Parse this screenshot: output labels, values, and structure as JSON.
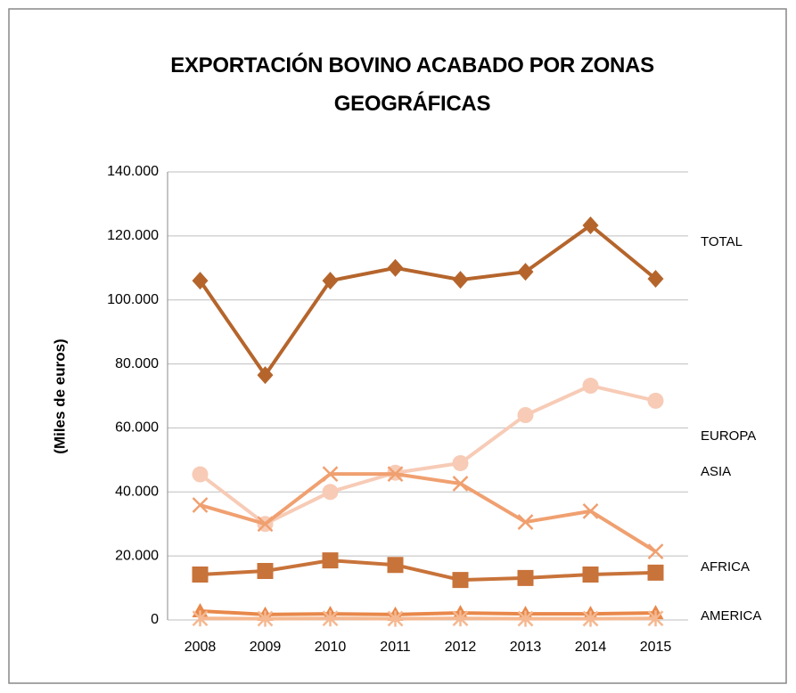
{
  "chart_data": {
    "type": "line",
    "title": "EXPORTACIÓN BOVINO ACABADO POR ZONAS GEOGRÁFICAS",
    "y_label": "(Miles de euros)",
    "categories": [
      "2008",
      "2009",
      "2010",
      "2011",
      "2012",
      "2013",
      "2014",
      "2015"
    ],
    "series": [
      {
        "name": "TOTAL",
        "color": "#b5652c",
        "marker": "diamond",
        "values": [
          106000,
          76500,
          106000,
          110000,
          106300,
          108800,
          123300,
          106600
        ]
      },
      {
        "name": "EUROPA",
        "color": "#f7cbb6",
        "marker": "circle",
        "values": [
          45500,
          30000,
          40000,
          46000,
          49000,
          64000,
          73200,
          68500
        ]
      },
      {
        "name": "ASIA",
        "color": "#f0a070",
        "marker": "x",
        "values": [
          35900,
          30000,
          45600,
          45600,
          42600,
          30600,
          34000,
          21400
        ]
      },
      {
        "name": "AFRICA",
        "color": "#c8733a",
        "marker": "square",
        "values": [
          14200,
          15300,
          18600,
          17200,
          12500,
          13100,
          14200,
          14800
        ]
      },
      {
        "name": "AMERICA",
        "color": "#e8884a",
        "marker": "triangle",
        "values": [
          2800,
          1700,
          1900,
          1700,
          2200,
          1900,
          1900,
          2200
        ]
      },
      {
        "color": "#f5b890",
        "marker": "asterisk",
        "values": [
          500,
          400,
          500,
          400,
          500,
          400,
          400,
          500
        ]
      }
    ],
    "ylim": [
      0,
      140000
    ],
    "yticks": [
      0,
      {
        "value": 20000,
        "label": "20.000"
      },
      {
        "value": 40000,
        "label": "40.000"
      },
      {
        "value": 60000,
        "label": "60.000"
      },
      {
        "value": 80000,
        "label": "80.000"
      },
      {
        "value": 100000,
        "label": "100.000"
      },
      {
        "value": 120000,
        "label": "120.000"
      },
      {
        "value": 140000,
        "label": "140.000"
      }
    ],
    "grid": true
  }
}
